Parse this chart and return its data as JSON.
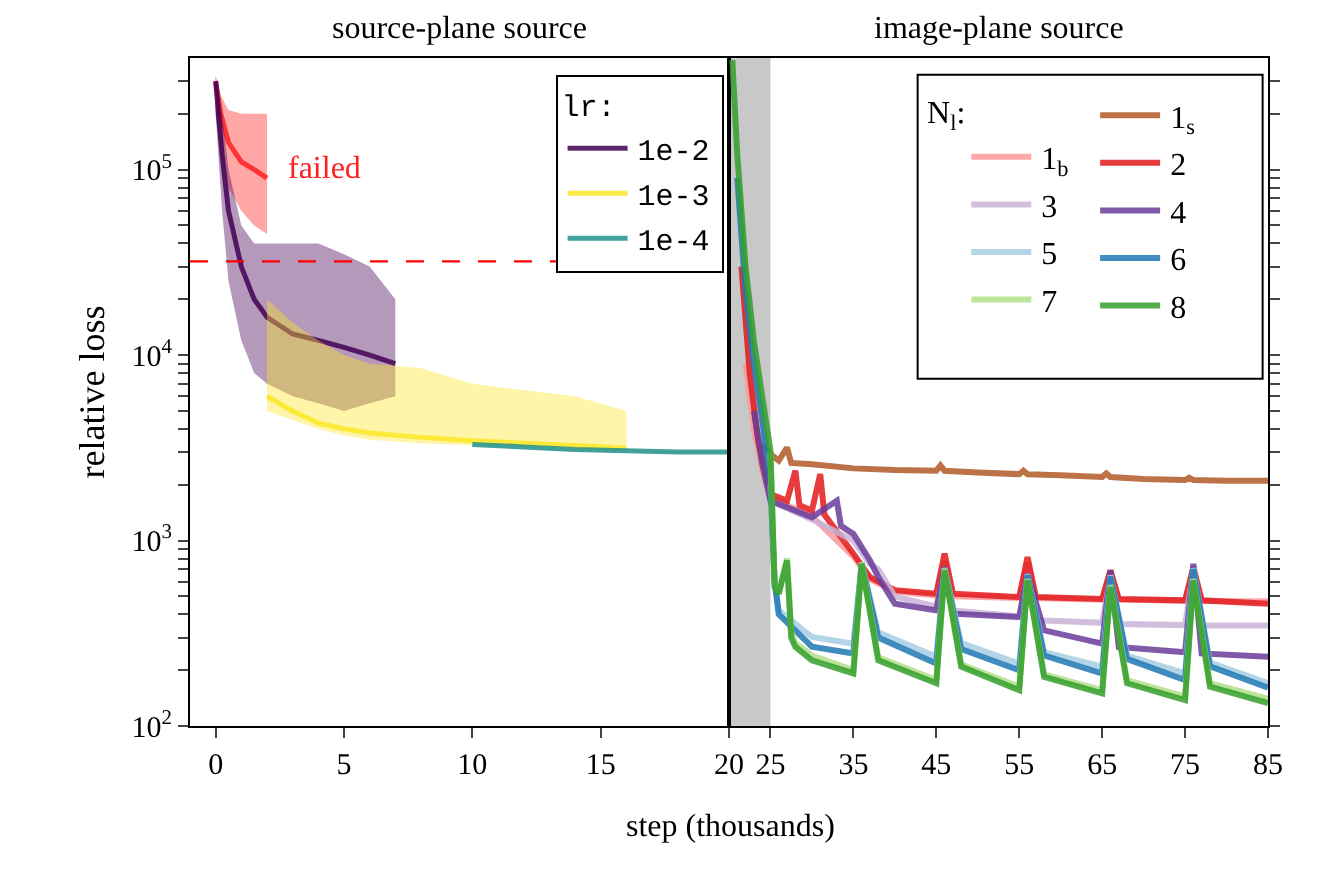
{
  "chart_data": [
    {
      "type": "line",
      "title": "source-plane source",
      "xlabel": "step (thousands)",
      "ylabel": "relative loss",
      "log": "y",
      "legend": "top right",
      "legend_title": "lr:",
      "xlim": [
        -1,
        20
      ],
      "xticks": [
        0,
        5,
        10,
        15,
        20
      ],
      "ylim": [
        100,
        400000
      ],
      "yticks": [
        {
          "value": 100,
          "label": "10$^{2}$"
        },
        {
          "value": 200,
          "label": null
        },
        {
          "value": 300,
          "label": null
        },
        {
          "value": 400,
          "label": null
        },
        {
          "value": 500,
          "label": null
        },
        {
          "value": 600,
          "label": null
        },
        {
          "value": 700,
          "label": null
        },
        {
          "value": 800,
          "label": null
        },
        {
          "value": 900,
          "label": null
        },
        {
          "value": 1000,
          "label": "10$^{3}$"
        },
        {
          "value": 2000,
          "label": null
        },
        {
          "value": 3000,
          "label": null
        },
        {
          "value": 4000,
          "label": null
        },
        {
          "value": 5000,
          "label": null
        },
        {
          "value": 6000,
          "label": null
        },
        {
          "value": 7000,
          "label": null
        },
        {
          "value": 8000,
          "label": null
        },
        {
          "value": 9000,
          "label": null
        },
        {
          "value": 10000,
          "label": "10$^{4}$"
        },
        {
          "value": 20000,
          "label": null
        },
        {
          "value": 30000,
          "label": null
        },
        {
          "value": 40000,
          "label": null
        },
        {
          "value": 50000,
          "label": null
        },
        {
          "value": 60000,
          "label": null
        },
        {
          "value": 70000,
          "label": null
        },
        {
          "value": 80000,
          "label": null
        },
        {
          "value": 90000,
          "label": null
        },
        {
          "value": 100000,
          "label": "10$^{5}$"
        },
        {
          "value": 200000,
          "label": null
        },
        {
          "value": 300000,
          "label": null
        }
      ],
      "series": [
        {
          "color": "#ff2020",
          "x": [
            0,
            0.2,
            0.5,
            1,
            1.5,
            2
          ],
          "values": [
            300000,
            200000,
            140000,
            110000,
            100000,
            90000
          ],
          "lower": [
            200000,
            120000,
            80000,
            60000,
            50000,
            45000
          ],
          "upper": [
            320000,
            250000,
            210000,
            200000,
            200000,
            200000
          ]
        },
        {
          "name": "1e-2",
          "color": "#440154",
          "x": [
            0,
            0.25,
            0.5,
            1,
            1.5,
            2,
            3,
            4,
            5,
            6,
            7
          ],
          "values": [
            300000,
            120000,
            60000,
            30000,
            20000,
            16000,
            13000,
            12000,
            11000,
            10000,
            9000
          ],
          "lower": [
            200000,
            60000,
            25000,
            12000,
            8000,
            7000,
            6000,
            5500,
            5000,
            5500,
            6000
          ],
          "upper": [
            320000,
            200000,
            100000,
            50000,
            40000,
            40000,
            40000,
            40000,
            35000,
            30000,
            20000
          ]
        },
        {
          "name": "1e-3",
          "color": "#fde725",
          "x": [
            2,
            3,
            4,
            5,
            6,
            8,
            10,
            12,
            14,
            16
          ],
          "values": [
            6000,
            5000,
            4300,
            4000,
            3800,
            3600,
            3450,
            3350,
            3250,
            3150
          ],
          "lower": [
            5000,
            4500,
            4000,
            3700,
            3500,
            3350,
            3250,
            3180,
            3100,
            3050
          ],
          "upper": [
            20000,
            15000,
            12000,
            10000,
            9000,
            8500,
            7000,
            6500,
            6000,
            5000
          ]
        },
        {
          "name": "1e-4",
          "color": "#21918c",
          "x": [
            10,
            12,
            14,
            16,
            18,
            20
          ],
          "values": [
            3300,
            3200,
            3100,
            3050,
            3000,
            3000
          ]
        }
      ],
      "ref_lines": [
        {
          "axis": "y",
          "value": 32000,
          "color": "#ff0000",
          "line_style": "dashed"
        }
      ],
      "annotations": [
        "failed"
      ]
    },
    {
      "type": "line",
      "title": "image-plane source",
      "log": "y",
      "legend": "top right",
      "legend_title": "N$_{l}$:",
      "tick_labels": "x",
      "xlim": [
        20,
        85
      ],
      "xticks": [
        25,
        35,
        45,
        55,
        65,
        75,
        85
      ],
      "ylim": [
        100,
        400000
      ],
      "yticks": [
        100,
        200,
        300,
        400,
        500,
        600,
        700,
        800,
        900,
        1000,
        2000,
        3000,
        4000,
        5000,
        6000,
        7000,
        8000,
        9000,
        10000,
        20000,
        30000,
        40000,
        50000,
        60000,
        70000,
        80000,
        90000,
        100000,
        200000,
        300000
      ],
      "bands": [
        {
          "axis": "x",
          "from": 20,
          "to": 25,
          "color": "#c8c8c8"
        }
      ],
      "series": [
        {
          "name": "1$_{s}$",
          "color": "#b15928",
          "x": [
            24,
            25,
            26,
            27,
            27.5,
            30,
            35,
            40,
            45,
            45.5,
            46,
            50,
            55,
            55.5,
            56,
            60,
            65,
            65.5,
            66,
            70,
            75,
            75.5,
            76,
            80,
            85
          ],
          "values": [
            3300,
            2920,
            2700,
            3170,
            2620,
            2580,
            2450,
            2400,
            2380,
            2540,
            2380,
            2330,
            2280,
            2380,
            2280,
            2250,
            2200,
            2300,
            2200,
            2150,
            2120,
            2180,
            2120,
            2100,
            2100
          ]
        },
        {
          "name": "1$_{b}$",
          "color": "#fb9a99",
          "x": [
            22,
            23,
            24,
            25,
            30,
            35,
            37,
            40,
            45,
            46,
            47,
            55,
            56,
            57,
            65,
            66,
            67,
            75,
            76,
            77,
            85
          ],
          "values": [
            9000,
            4000,
            2400,
            1700,
            1350,
            820,
            620,
            530,
            505,
            780,
            500,
            490,
            760,
            490,
            480,
            680,
            480,
            472,
            690,
            472,
            470
          ]
        },
        {
          "name": "2",
          "color": "#e31a1c",
          "x": [
            21.5,
            22.5,
            23.5,
            25,
            27,
            28,
            28.5,
            30,
            31,
            31.5,
            35,
            37,
            40,
            45,
            46,
            47,
            55,
            56,
            57,
            65,
            66,
            67,
            75,
            76,
            77,
            85
          ],
          "values": [
            30000,
            8000,
            3500,
            1780,
            1640,
            2380,
            1550,
            1450,
            2280,
            1380,
            850,
            635,
            540,
            517,
            850,
            517,
            496,
            814,
            496,
            484,
            690,
            484,
            476,
            719,
            476,
            456
          ]
        },
        {
          "name": "3",
          "color": "#cab2d6",
          "x": [
            25,
            30,
            35,
            37,
            38,
            40,
            45,
            46,
            47,
            55,
            56,
            57,
            65,
            66,
            67,
            75,
            76,
            77,
            85
          ],
          "values": [
            1640,
            1300,
            1000,
            750,
            700,
            500,
            440,
            700,
            420,
            390,
            650,
            372,
            360,
            640,
            355,
            350,
            700,
            348,
            348
          ]
        },
        {
          "name": "4",
          "color": "#6a3d9a",
          "x": [
            23,
            24,
            25,
            30,
            33,
            33.5,
            35,
            37,
            38,
            40,
            45,
            46,
            47,
            55,
            56,
            58,
            65,
            66,
            67,
            75,
            76,
            77,
            85
          ],
          "values": [
            5000,
            2600,
            1640,
            1335,
            1640,
            1200,
            1086,
            781,
            635,
            456,
            420,
            719,
            403,
            387,
            662,
            328,
            278,
            690,
            267,
            250,
            749,
            246,
            236
          ]
        },
        {
          "name": "5",
          "color": "#a6cee3",
          "x": [
            25,
            25.5,
            26,
            30,
            35,
            36,
            38,
            45,
            46,
            48,
            55,
            56,
            58,
            65,
            66,
            68,
            75,
            76,
            78,
            85
          ],
          "values": [
            2000,
            620,
            420,
            302,
            278,
            760,
            320,
            236,
            710,
            280,
            217,
            660,
            250,
            209,
            650,
            240,
            192,
            710,
            220,
            170
          ]
        },
        {
          "name": "6",
          "color": "#1f78b4",
          "x": [
            21,
            22,
            23,
            24,
            25,
            25.5,
            26,
            30,
            35,
            36,
            38,
            45,
            46,
            48,
            55,
            56,
            58,
            65,
            66,
            68,
            75,
            76,
            78,
            85
          ],
          "values": [
            90000,
            22000,
            9000,
            4500,
            2000,
            600,
            400,
            268,
            246,
            749,
            300,
            217,
            700,
            260,
            200,
            650,
            240,
            192,
            640,
            230,
            177,
            700,
            210,
            161
          ]
        },
        {
          "name": "7",
          "color": "#b2df8a",
          "x": [
            25,
            25.5,
            26,
            27,
            27.5,
            28,
            30,
            35,
            36,
            38,
            45,
            46,
            48,
            55,
            56,
            58,
            65,
            66,
            68,
            75,
            76,
            78,
            85
          ],
          "values": [
            3000,
            580,
            530,
            800,
            320,
            280,
            240,
            200,
            760,
            235,
            177,
            700,
            215,
            163,
            620,
            190,
            156,
            575,
            177,
            144,
            620,
            170,
            140
          ]
        },
        {
          "name": "8",
          "color": "#33a02c",
          "x": [
            20.4,
            21,
            22,
            23,
            24,
            25,
            25.5,
            26,
            27,
            27.5,
            28,
            30,
            35,
            36,
            38,
            45,
            46,
            48,
            55,
            56,
            58,
            65,
            66,
            68,
            75,
            76,
            78,
            85
          ],
          "values": [
            390000,
            120000,
            30000,
            12000,
            6000,
            3050,
            562,
            517,
            781,
            300,
            267,
            226,
            192,
            749,
            226,
            170,
            690,
            209,
            156,
            610,
            184,
            150,
            562,
            170,
            138,
            610,
            163,
            133
          ]
        }
      ]
    }
  ]
}
